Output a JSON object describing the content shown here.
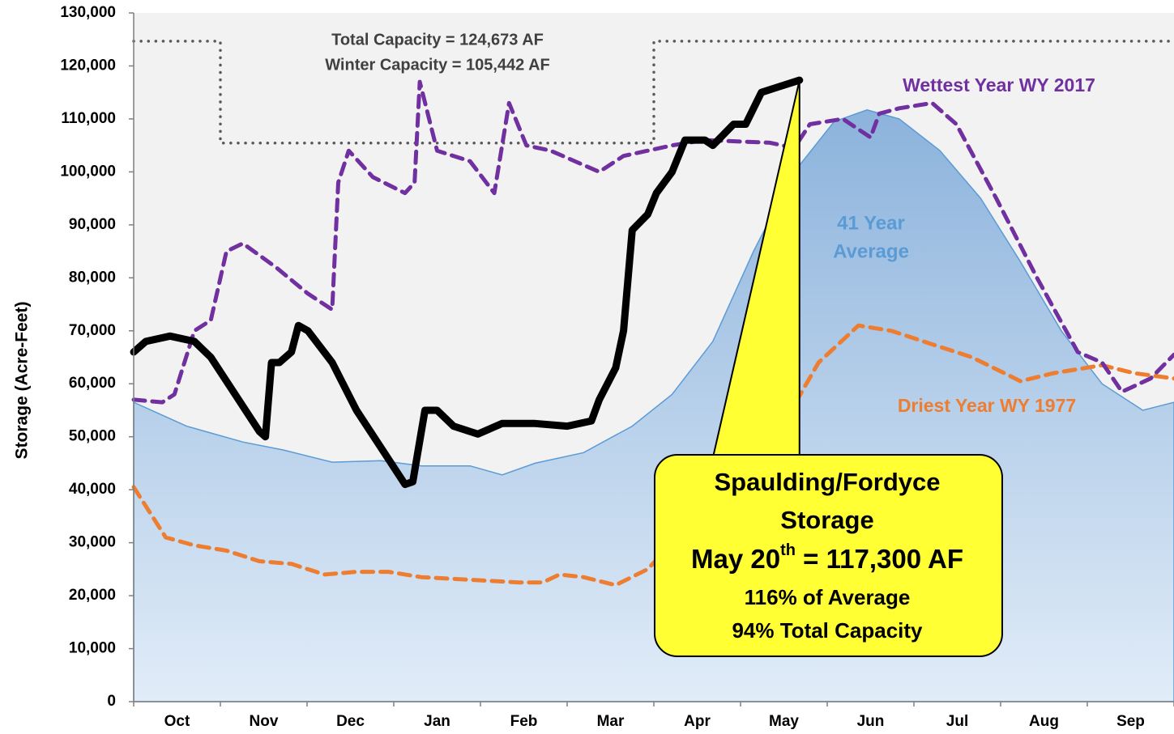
{
  "chart_data": {
    "type": "line",
    "ylabel": "Storage (Acre-Feet)",
    "ylim": [
      0,
      130000
    ],
    "yticks": [
      0,
      {
        "value": 10000,
        "label": "10,000"
      },
      {
        "value": 20000,
        "label": "20,000"
      },
      {
        "value": 30000,
        "label": "30,000"
      },
      {
        "value": 40000,
        "label": "40,000"
      },
      {
        "value": 50000,
        "label": "50,000"
      },
      {
        "value": 60000,
        "label": "60,000"
      },
      {
        "value": 70000,
        "label": "70,000"
      },
      {
        "value": 80000,
        "label": "80,000"
      },
      {
        "value": 90000,
        "label": "90,000"
      },
      {
        "value": 100000,
        "label": "100,000"
      },
      {
        "value": 110000,
        "label": "110,000"
      },
      {
        "value": 120000,
        "label": "120,000"
      },
      {
        "value": 130000,
        "label": "130,000"
      }
    ],
    "xlim": [
      0,
      12
    ],
    "xticks": [
      {
        "value": 0.5,
        "label": "Oct"
      },
      {
        "value": 1.5,
        "label": "Nov"
      },
      {
        "value": 2.5,
        "label": "Dec"
      },
      {
        "value": 3.5,
        "label": "Jan"
      },
      {
        "value": 4.5,
        "label": "Feb"
      },
      {
        "value": 5.5,
        "label": "Mar"
      },
      {
        "value": 6.5,
        "label": "Apr"
      },
      {
        "value": 7.5,
        "label": "May"
      },
      {
        "value": 8.5,
        "label": "Jun"
      },
      {
        "value": 9.5,
        "label": "Jul"
      },
      {
        "value": 10.5,
        "label": "Aug"
      },
      {
        "value": 11.5,
        "label": "Sep"
      }
    ],
    "capacity_text": [
      "Total Capacity = 124,673 AF",
      "Winter Capacity = 105,442 AF"
    ],
    "series": [
      {
        "label": [
          "41 Year",
          "Average"
        ],
        "style": "area",
        "color": "#5b9bd5",
        "x": [
          0,
          0.61,
          1.26,
          1.73,
          2.29,
          2.85,
          3.32,
          3.88,
          4.25,
          4.63,
          5.19,
          5.75,
          6.21,
          6.68,
          7.15,
          7.62,
          8.08,
          8.46,
          8.83,
          9.3,
          9.77,
          10.23,
          10.7,
          11.17,
          11.64,
          12
        ],
        "values": [
          56500,
          52000,
          49000,
          47500,
          45200,
          45500,
          44500,
          44500,
          42800,
          45000,
          47000,
          52000,
          58000,
          68000,
          85000,
          100000,
          109500,
          111700,
          110000,
          104000,
          95000,
          83000,
          70000,
          60000,
          55000,
          56500
        ]
      },
      {
        "style": "dotted",
        "color": "#595959",
        "x": [
          0,
          1,
          1,
          6,
          6,
          12
        ],
        "values": [
          124673,
          124673,
          105442,
          105442,
          124673,
          124673
        ]
      },
      {
        "name": "Driest Year WY 1977",
        "style": "dashed",
        "color": "#ed7d31",
        "x": [
          0,
          0.37,
          0.7,
          1.07,
          1.45,
          1.82,
          2.2,
          2.57,
          2.94,
          3.32,
          3.88,
          4.44,
          4.72,
          4.91,
          5.19,
          5.56,
          5.93,
          6.21,
          6.5,
          6.87,
          7.24,
          7.62,
          7.9,
          8.36,
          8.74,
          9.11,
          9.67,
          10.23,
          10.61,
          11.17,
          11.54,
          12
        ],
        "values": [
          40500,
          31000,
          29500,
          28500,
          26500,
          26000,
          24000,
          24500,
          24500,
          23500,
          23000,
          22500,
          22500,
          24000,
          23500,
          22000,
          25000,
          30000,
          37000,
          42000,
          45000,
          56000,
          64000,
          71000,
          70000,
          68000,
          65000,
          60500,
          62000,
          63500,
          62000,
          61000
        ]
      },
      {
        "name": "Wettest Year WY 2017",
        "style": "dashed",
        "color": "#7030a0",
        "x": [
          0,
          0.33,
          0.47,
          0.7,
          0.89,
          1.07,
          1.26,
          1.64,
          2.01,
          2.29,
          2.36,
          2.48,
          2.76,
          3.13,
          3.24,
          3.3,
          3.5,
          3.88,
          4.16,
          4.33,
          4.53,
          4.81,
          5.37,
          5.65,
          5.93,
          6.21,
          6.59,
          7.34,
          7.62,
          7.8,
          8.18,
          8.5,
          8.6,
          8.83,
          9.21,
          9.49,
          9.95,
          10.42,
          10.89,
          11.17,
          11.4,
          11.73,
          12
        ],
        "values": [
          57000,
          56500,
          58000,
          70000,
          72000,
          85000,
          86500,
          82000,
          77000,
          74000,
          98000,
          104000,
          99000,
          96000,
          98000,
          117000,
          104000,
          102000,
          96000,
          113000,
          105000,
          104000,
          100000,
          103000,
          104000,
          105000,
          106000,
          105500,
          104500,
          109000,
          110000,
          106500,
          111000,
          112000,
          113000,
          109000,
          95000,
          80000,
          66000,
          64000,
          58500,
          61000,
          65500
        ]
      },
      {
        "style": "solid",
        "color": "#000000",
        "x": [
          0,
          0.14,
          0.42,
          0.7,
          0.89,
          1.17,
          1.45,
          1.52,
          1.59,
          1.68,
          1.82,
          1.9,
          2.01,
          2.29,
          2.57,
          2.85,
          3.13,
          3.22,
          3.36,
          3.5,
          3.69,
          3.97,
          4.25,
          4.63,
          5.0,
          5.28,
          5.37,
          5.56,
          5.65,
          5.75,
          5.93,
          6.03,
          6.21,
          6.36,
          6.59,
          6.68,
          6.92,
          7.06,
          7.24,
          7.43,
          7.68
        ],
        "values": [
          66000,
          68000,
          69000,
          68000,
          65000,
          58000,
          51000,
          50000,
          64000,
          64000,
          66000,
          71000,
          70000,
          64000,
          55000,
          48000,
          41000,
          41500,
          55000,
          55000,
          52000,
          50500,
          52500,
          52500,
          52000,
          53000,
          57000,
          63000,
          70000,
          89000,
          92000,
          96000,
          100000,
          106000,
          106000,
          105000,
          109000,
          109000,
          115000,
          116000,
          117300
        ]
      }
    ],
    "callout": {
      "title": [
        "Spaulding/Fordyce",
        "Storage"
      ],
      "date": "May 20",
      "date_sup": "th",
      "amount": " = 117,300 AF",
      "notes": [
        "116% of Average",
        "94% Total Capacity"
      ]
    }
  }
}
